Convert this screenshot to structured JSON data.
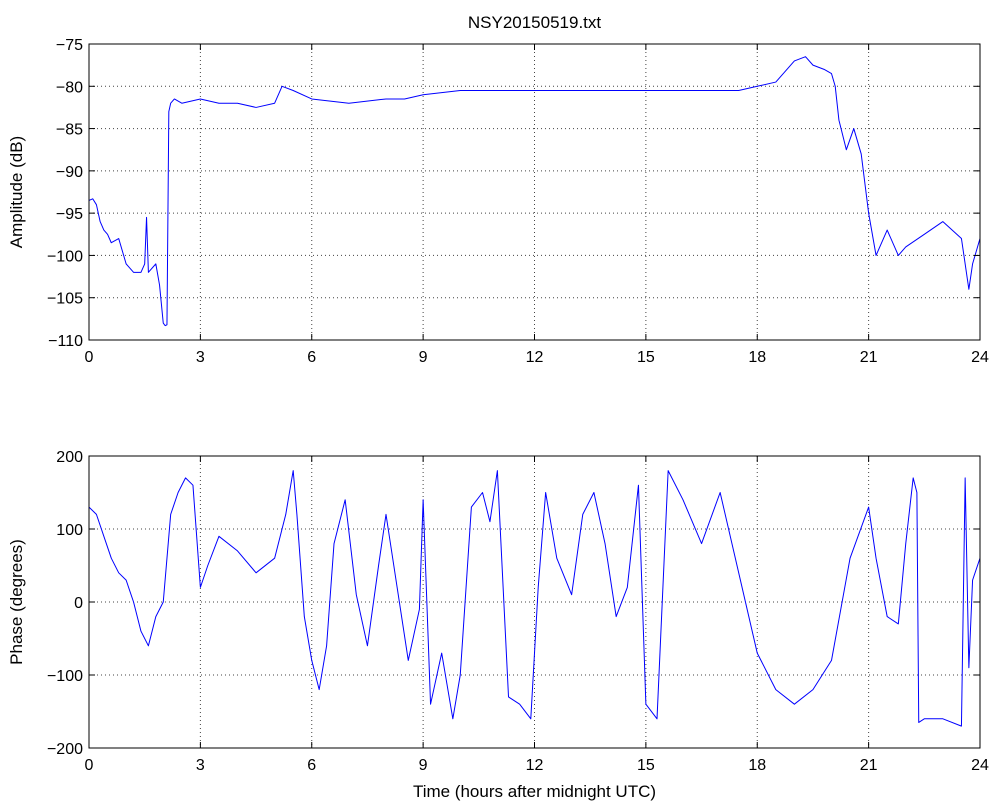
{
  "chart_data": [
    {
      "type": "line",
      "title": "NSY20150519.txt",
      "xlabel": "",
      "ylabel": "Amplitude (dB)",
      "xlim": [
        0,
        24
      ],
      "ylim": [
        -110,
        -75
      ],
      "xticks": [
        0,
        3,
        6,
        9,
        12,
        15,
        18,
        21,
        24
      ],
      "yticks": [
        -75,
        -80,
        -85,
        -90,
        -95,
        -100,
        -105,
        -110
      ],
      "xtick_labels": [
        "0",
        "3",
        "6",
        "9",
        "12",
        "15",
        "18",
        "21",
        "24"
      ],
      "ytick_labels": [
        "−75",
        "−80",
        "−85",
        "−90",
        "−95",
        "−100",
        "−105",
        "−110"
      ],
      "grid": true,
      "series": [
        {
          "color": "#0000ff",
          "x": [
            0,
            0.1,
            0.2,
            0.3,
            0.4,
            0.5,
            0.6,
            0.8,
            1.0,
            1.2,
            1.4,
            1.5,
            1.55,
            1.6,
            1.8,
            1.9,
            2.0,
            2.05,
            2.1,
            2.15,
            2.2,
            2.3,
            2.5,
            3.0,
            3.5,
            4.0,
            4.5,
            5.0,
            5.2,
            5.5,
            6.0,
            7.0,
            8.0,
            8.5,
            9.0,
            10.0,
            11.0,
            12.0,
            13.0,
            14.0,
            15.0,
            16.0,
            17.0,
            17.5,
            18.0,
            18.5,
            19.0,
            19.3,
            19.5,
            19.8,
            20.0,
            20.1,
            20.2,
            20.4,
            20.6,
            20.8,
            21.0,
            21.2,
            21.5,
            21.8,
            22.0,
            22.5,
            23.0,
            23.5,
            23.7,
            23.8,
            24.0
          ],
          "values": [
            -93.5,
            -93.3,
            -94.0,
            -96.0,
            -97.0,
            -97.5,
            -98.5,
            -98.0,
            -101.0,
            -102.0,
            -102.0,
            -101.0,
            -95.5,
            -102.0,
            -101.0,
            -103.5,
            -108.0,
            -108.3,
            -108.2,
            -83.0,
            -82.0,
            -81.5,
            -82.0,
            -81.5,
            -82.0,
            -82.0,
            -82.5,
            -82.0,
            -80.0,
            -80.5,
            -81.5,
            -82.0,
            -81.5,
            -81.5,
            -81.0,
            -80.5,
            -80.5,
            -80.5,
            -80.5,
            -80.5,
            -80.5,
            -80.5,
            -80.5,
            -80.5,
            -80.0,
            -79.5,
            -77.0,
            -76.5,
            -77.5,
            -78.0,
            -78.5,
            -80.0,
            -84.0,
            -87.5,
            -85.0,
            -88.0,
            -95.0,
            -100.0,
            -97.0,
            -100.0,
            -99.0,
            -97.5,
            -96.0,
            -98.0,
            -104.0,
            -101.0,
            -98.0
          ]
        }
      ]
    },
    {
      "type": "line",
      "title": "",
      "xlabel": "Time (hours after midnight UTC)",
      "ylabel": "Phase (degrees)",
      "xlim": [
        0,
        24
      ],
      "ylim": [
        -200,
        200
      ],
      "xticks": [
        0,
        3,
        6,
        9,
        12,
        15,
        18,
        21,
        24
      ],
      "yticks": [
        200,
        100,
        0,
        -100,
        -200
      ],
      "xtick_labels": [
        "0",
        "3",
        "6",
        "9",
        "12",
        "15",
        "18",
        "21",
        "24"
      ],
      "ytick_labels": [
        "200",
        "100",
        "0",
        "−100",
        "−200"
      ],
      "grid": true,
      "series": [
        {
          "color": "#0000ff",
          "x": [
            0,
            0.2,
            0.4,
            0.6,
            0.8,
            1.0,
            1.2,
            1.4,
            1.6,
            1.8,
            2.0,
            2.2,
            2.4,
            2.6,
            2.8,
            3.0,
            3.2,
            3.5,
            4.0,
            4.5,
            5.0,
            5.3,
            5.5,
            5.6,
            5.8,
            6.0,
            6.2,
            6.4,
            6.6,
            6.9,
            7.2,
            7.5,
            7.8,
            8.0,
            8.3,
            8.6,
            8.9,
            9.0,
            9.2,
            9.5,
            9.8,
            10.0,
            10.3,
            10.6,
            10.8,
            11.0,
            11.3,
            11.6,
            11.9,
            12.1,
            12.3,
            12.6,
            13.0,
            13.3,
            13.6,
            13.9,
            14.2,
            14.5,
            14.8,
            15.0,
            15.3,
            15.6,
            16.0,
            16.5,
            17.0,
            17.5,
            18.0,
            18.5,
            19.0,
            19.5,
            20.0,
            20.5,
            21.0,
            21.2,
            21.5,
            21.8,
            22.0,
            22.2,
            22.3,
            22.35,
            22.5,
            23.0,
            23.5,
            23.6,
            23.7,
            23.8,
            24.0
          ],
          "values": [
            130,
            120,
            90,
            60,
            40,
            30,
            0,
            -40,
            -60,
            -20,
            0,
            120,
            150,
            170,
            160,
            20,
            50,
            90,
            70,
            40,
            60,
            120,
            180,
            120,
            -20,
            -80,
            -120,
            -60,
            80,
            140,
            10,
            -60,
            50,
            120,
            20,
            -80,
            -10,
            140,
            -140,
            -70,
            -160,
            -100,
            130,
            150,
            110,
            180,
            -130,
            -140,
            -160,
            20,
            150,
            60,
            10,
            120,
            150,
            80,
            -20,
            20,
            160,
            -140,
            -160,
            180,
            140,
            80,
            150,
            40,
            -70,
            -120,
            -140,
            -120,
            -80,
            60,
            130,
            60,
            -20,
            -30,
            80,
            170,
            150,
            -165,
            -160,
            -160,
            -170,
            170,
            -90,
            30,
            60
          ]
        }
      ]
    }
  ]
}
